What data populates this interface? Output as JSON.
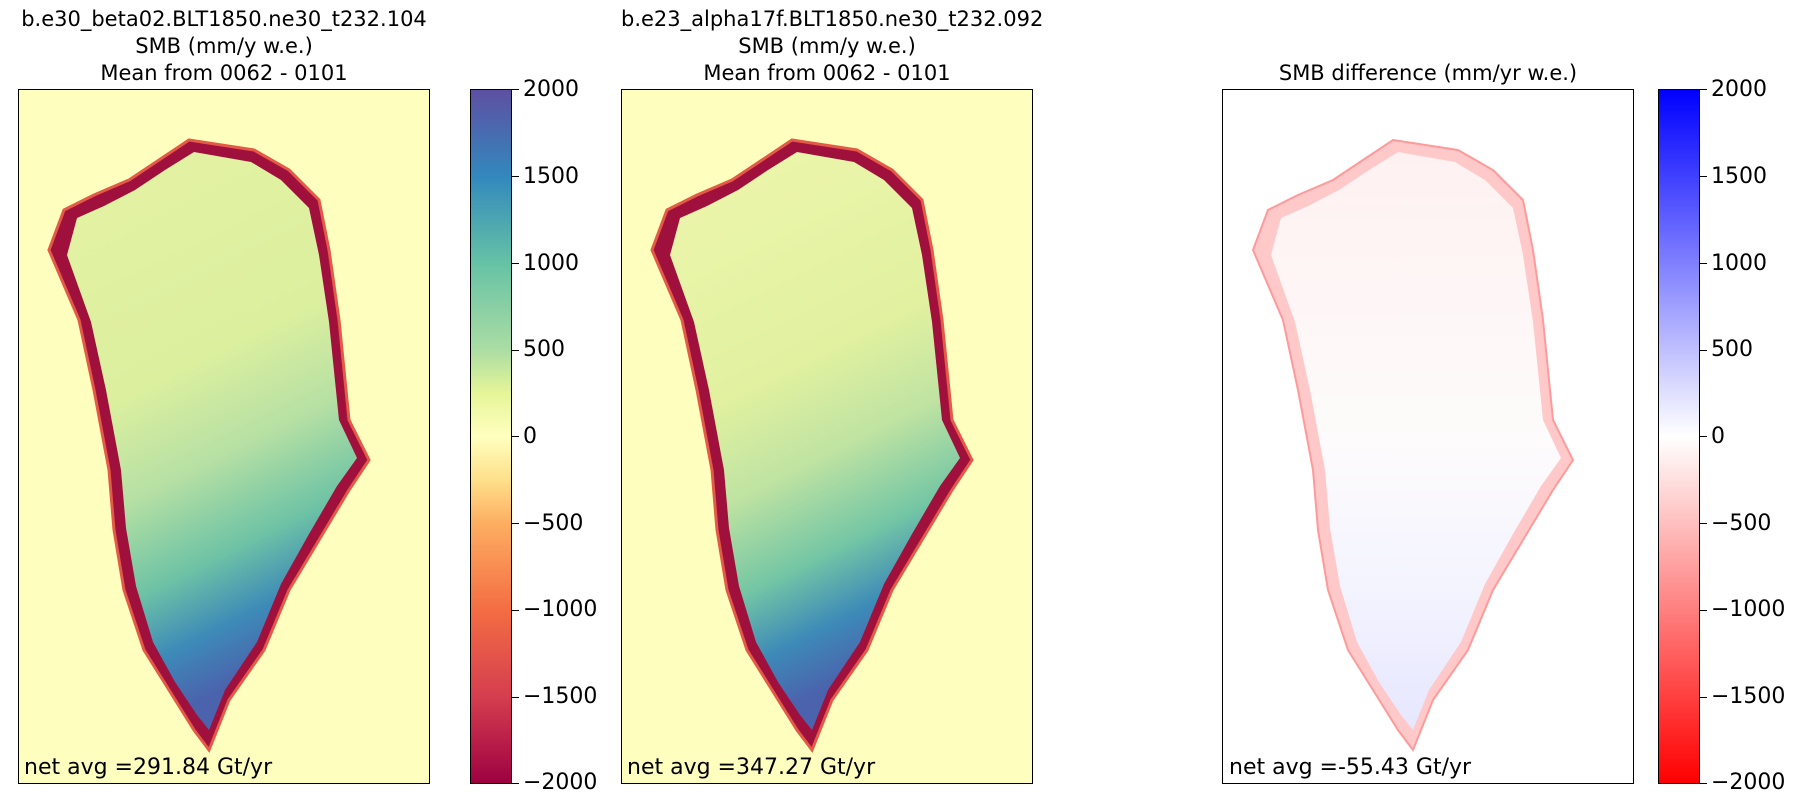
{
  "chart_data": [
    {
      "type": "heatmap",
      "title": [
        "b.e30_beta02.BLT1850.ne30_t232.104",
        "SMB (mm/y w.e.)",
        "Mean from 0062 - 0101"
      ],
      "annotation": "net avg =291.84 Gt/yr",
      "net_avg": 291.84,
      "units": "Gt/yr",
      "colormap": "Spectral",
      "colorbar": {
        "range": [
          -2000,
          2000
        ],
        "ticks": [
          "2000",
          "1500",
          "1000",
          "500",
          "0",
          "−500",
          "−1000",
          "−1500",
          "−2000"
        ]
      },
      "background_color": "#feffbf"
    },
    {
      "type": "heatmap",
      "title": [
        "b.e23_alpha17f.BLT1850.ne30_t232.092",
        "SMB (mm/y w.e.)",
        "Mean from 0062 - 0101"
      ],
      "annotation": "net avg =347.27 Gt/yr",
      "net_avg": 347.27,
      "units": "Gt/yr",
      "colormap": "Spectral",
      "background_color": "#feffbf"
    },
    {
      "type": "heatmap",
      "title": [
        "SMB difference (mm/yr w.e.)"
      ],
      "annotation": "net avg =-55.43 Gt/yr",
      "net_avg": -55.43,
      "units": "Gt/yr",
      "colormap": "bwr_r",
      "colorbar": {
        "range": [
          -2000,
          2000
        ],
        "ticks": [
          "2000",
          "1500",
          "1000",
          "500",
          "0",
          "−500",
          "−1000",
          "−1500",
          "−2000"
        ]
      },
      "background_color": "#ffffff"
    }
  ]
}
